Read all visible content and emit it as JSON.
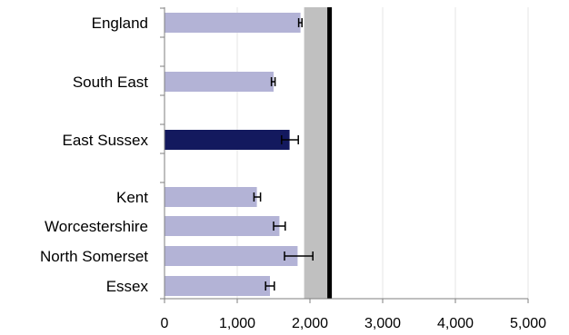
{
  "chart_data": {
    "type": "bar",
    "orientation": "horizontal",
    "categories": [
      "England",
      "South East",
      "East Sussex",
      "Kent",
      "Worcestershire",
      "North Somerset",
      "Essex"
    ],
    "values": [
      1870,
      1500,
      1720,
      1270,
      1580,
      1830,
      1450
    ],
    "error_low": [
      1845,
      1470,
      1610,
      1230,
      1500,
      1650,
      1390
    ],
    "error_high": [
      1890,
      1520,
      1840,
      1320,
      1660,
      2040,
      1510
    ],
    "highlight_category": "East Sussex",
    "x_ticks": [
      "0",
      "1,000",
      "2,000",
      "3,000",
      "4,000",
      "5,000"
    ],
    "xlim": [
      0,
      5000
    ],
    "reference_band": [
      1920,
      2270
    ],
    "reference_line": 2270,
    "grid": "vertical",
    "colors": {
      "bar": "#b3b3d6",
      "highlight": "#13195e",
      "band": "#c0c0c0",
      "line": "#000000",
      "error": "#000000",
      "grid": "#e6e6e6"
    }
  }
}
